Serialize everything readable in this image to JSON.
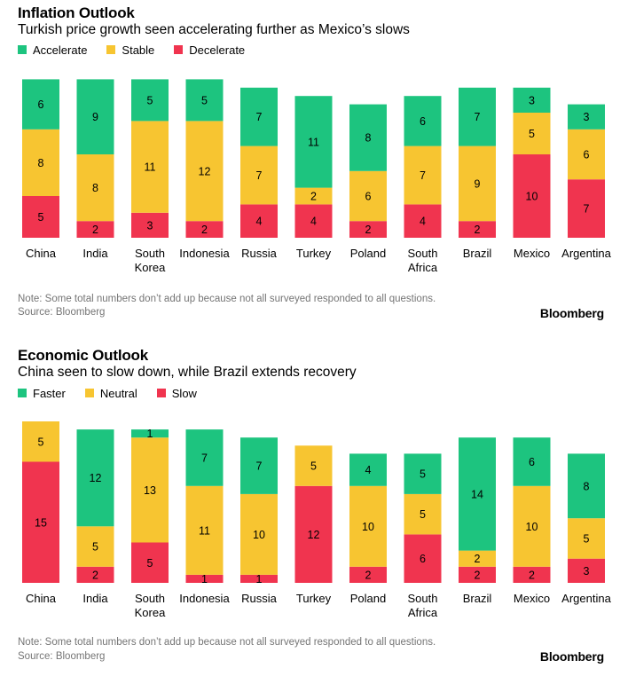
{
  "chart_data": [
    {
      "type": "bar",
      "stacked": true,
      "title": "Inflation Outlook",
      "subtitle": "Turkish price growth seen accelerating further as Mexico’s slows",
      "categories": [
        "China",
        "India",
        "South Korea",
        "Indonesia",
        "Russia",
        "Turkey",
        "Poland",
        "South Africa",
        "Brazil",
        "Mexico",
        "Argentina"
      ],
      "series": [
        {
          "name": "Decelerate",
          "color": "#f0344f",
          "values": [
            5,
            2,
            3,
            2,
            4,
            4,
            2,
            4,
            2,
            10,
            7
          ]
        },
        {
          "name": "Stable",
          "color": "#f7c531",
          "values": [
            8,
            8,
            11,
            12,
            7,
            2,
            6,
            7,
            9,
            5,
            6
          ]
        },
        {
          "name": "Accelerate",
          "color": "#1dc47f",
          "values": [
            6,
            9,
            5,
            5,
            7,
            11,
            8,
            6,
            7,
            3,
            3
          ]
        }
      ],
      "legend_order": [
        "Accelerate",
        "Stable",
        "Decelerate"
      ],
      "ylim": [
        0,
        19
      ],
      "grid": false,
      "legend_position": "top-left",
      "note": "Note: Some total numbers don’t add up because not all surveyed responded to all questions.",
      "source": "Source: Bloomberg",
      "brand": "Bloomberg"
    },
    {
      "type": "bar",
      "stacked": true,
      "title": "Economic Outlook",
      "subtitle": "China seen to slow down, while Brazil extends recovery",
      "categories": [
        "China",
        "India",
        "South Korea",
        "Indonesia",
        "Russia",
        "Turkey",
        "Poland",
        "South Africa",
        "Brazil",
        "Mexico",
        "Argentina"
      ],
      "series": [
        {
          "name": "Slow",
          "color": "#f0344f",
          "values": [
            15,
            2,
            5,
            1,
            1,
            12,
            2,
            6,
            2,
            2,
            3
          ]
        },
        {
          "name": "Neutral",
          "color": "#f7c531",
          "values": [
            5,
            5,
            13,
            11,
            10,
            5,
            10,
            5,
            2,
            10,
            5
          ]
        },
        {
          "name": "Faster",
          "color": "#1dc47f",
          "values": [
            0,
            12,
            1,
            7,
            7,
            0,
            4,
            5,
            14,
            6,
            8
          ]
        }
      ],
      "legend_order": [
        "Faster",
        "Neutral",
        "Slow"
      ],
      "ylim": [
        0,
        20
      ],
      "grid": false,
      "legend_position": "top-left",
      "note": "Note: Some total numbers don’t add up because not all surveyed responded to all questions.",
      "source": "Source: Bloomberg",
      "brand": "Bloomberg"
    }
  ]
}
